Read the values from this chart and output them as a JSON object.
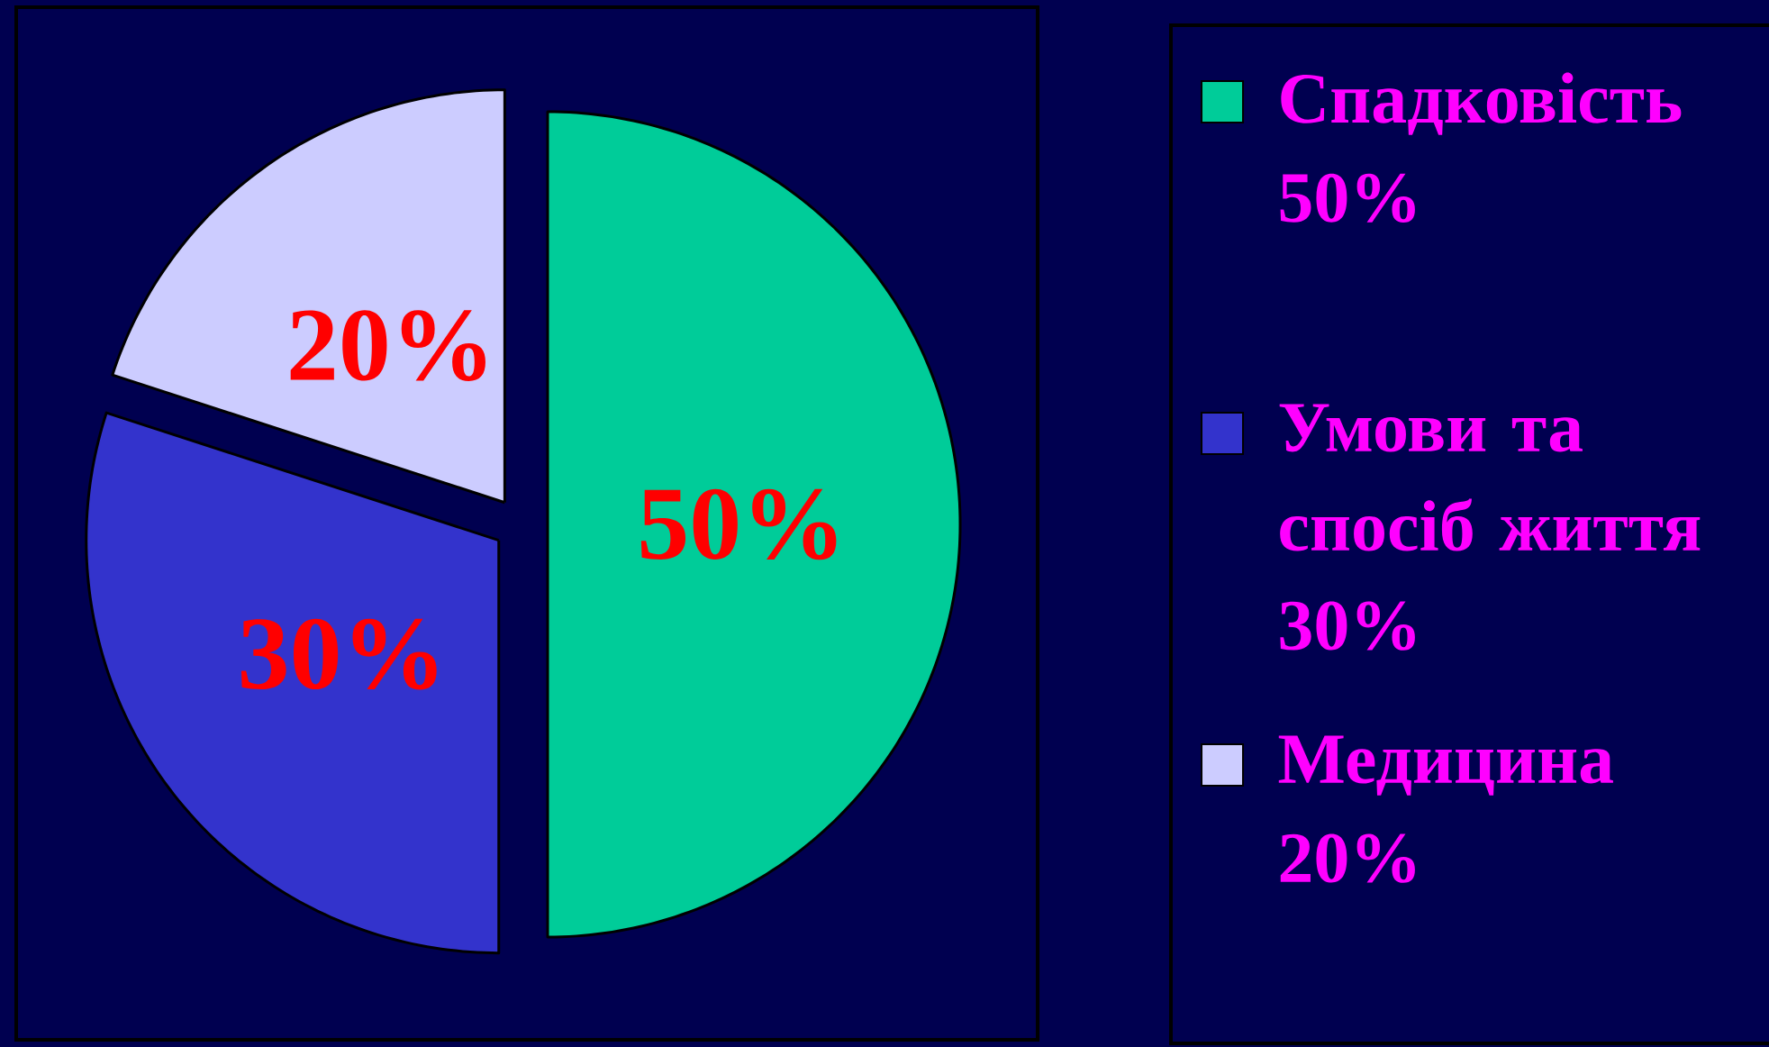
{
  "chart_data": {
    "type": "pie",
    "categories": [
      "Спадковість 50%",
      "Умови та спосіб життя 30%",
      "Медицина 20%"
    ],
    "values": [
      50,
      30,
      20
    ],
    "value_labels": [
      "50%",
      "30%",
      "20%"
    ],
    "colors": [
      "#00cc99",
      "#3333cc",
      "#ccccff"
    ],
    "legend": "right"
  }
}
